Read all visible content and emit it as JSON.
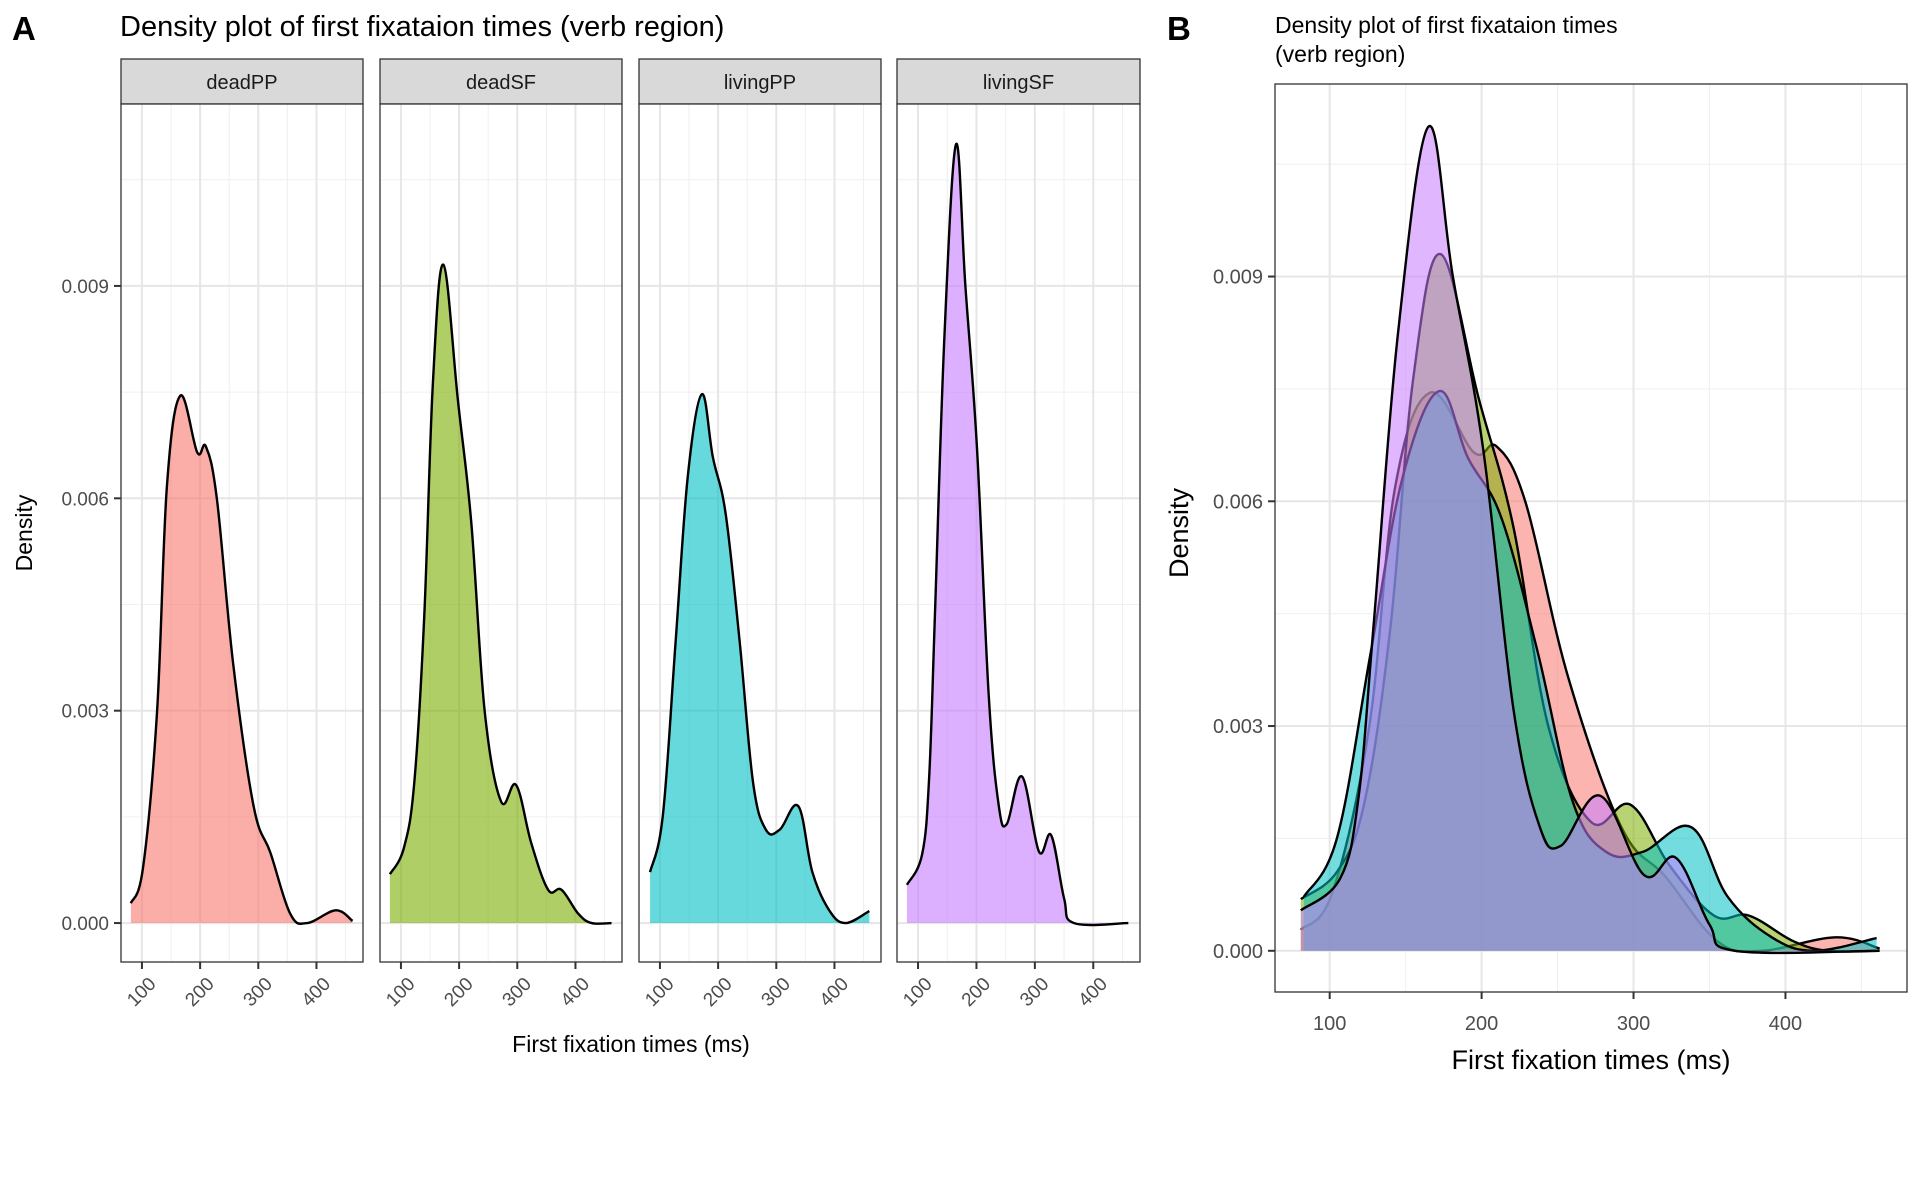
{
  "chart_data": [
    {
      "type": "area",
      "subtype": "faceted density",
      "tag": "A",
      "title": "Density plot of first fixataion times (verb region)",
      "xlabel": "First fixation times (ms)",
      "ylabel": "Density",
      "xlim": [
        64,
        480
      ],
      "ylim": [
        -0.00055,
        0.01157
      ],
      "x_ticks": [
        100,
        200,
        300,
        400
      ],
      "x_tick_labels": [
        "100",
        "200",
        "300",
        "400"
      ],
      "x_minor_ticks": [
        150,
        250,
        350,
        450
      ],
      "y_ticks": [
        0.0,
        0.003,
        0.006,
        0.009
      ],
      "y_tick_labels": [
        "0.000",
        "0.003",
        "0.006",
        "0.009"
      ],
      "y_minor_ticks": [
        0.0015,
        0.0045,
        0.0075,
        0.0105
      ],
      "x_tick_rotation_deg": 45,
      "grid": true,
      "fill_opacity": 0.6,
      "facets": [
        "deadPP",
        "deadSF",
        "livingPP",
        "livingSF"
      ]
    },
    {
      "type": "area",
      "subtype": "overlaid density",
      "tag": "B",
      "title": "Density plot of first fixataion times\n(verb region)",
      "title_lines": [
        "Density plot of first fixataion times",
        "(verb region)"
      ],
      "xlabel": "First fixation times (ms)",
      "ylabel": "Density",
      "xlim": [
        64,
        480
      ],
      "ylim": [
        -0.00055,
        0.01157
      ],
      "x_ticks": [
        100,
        200,
        300,
        400
      ],
      "x_tick_labels": [
        "100",
        "200",
        "300",
        "400"
      ],
      "x_minor_ticks": [
        150,
        250,
        350,
        450
      ],
      "y_ticks": [
        0.0,
        0.003,
        0.006,
        0.009
      ],
      "y_tick_labels": [
        "0.000",
        "0.003",
        "0.006",
        "0.009"
      ],
      "y_minor_ticks": [
        0.0015,
        0.0045,
        0.0075,
        0.0105
      ],
      "grid": true,
      "fill_opacity": 0.55,
      "legend": "none"
    }
  ],
  "series": [
    {
      "name": "deadPP",
      "color": "#F8766D",
      "x": [
        81,
        102,
        126,
        143,
        166,
        195,
        210,
        229,
        257,
        292,
        321,
        355,
        384,
        433,
        462
      ],
      "y": [
        0.00028,
        0.00079,
        0.00299,
        0.00618,
        0.00745,
        0.00665,
        0.00673,
        0.00598,
        0.00365,
        0.00165,
        0.00099,
        0.00013,
        0.0,
        0.00018,
        3e-05
      ]
    },
    {
      "name": "deadSF",
      "color": "#7CAE00",
      "x": [
        81,
        105,
        123,
        140,
        155,
        173,
        198,
        221,
        244,
        272,
        298,
        324,
        353,
        376,
        405,
        428,
        462
      ],
      "y": [
        0.00069,
        0.00106,
        0.00199,
        0.00432,
        0.00764,
        0.0093,
        0.00738,
        0.00565,
        0.00299,
        0.00172,
        0.00195,
        0.00113,
        0.00047,
        0.00047,
        0.00013,
        0.0,
        0.0
      ]
    },
    {
      "name": "livingPP",
      "color": "#00BFC4",
      "x": [
        83,
        105,
        127,
        148,
        172,
        191,
        213,
        237,
        260,
        282,
        306,
        338,
        362,
        391,
        419,
        460
      ],
      "y": [
        0.00072,
        0.00152,
        0.00398,
        0.00632,
        0.00747,
        0.00658,
        0.00578,
        0.00398,
        0.00199,
        0.00132,
        0.00132,
        0.00165,
        0.00072,
        0.00018,
        0.0,
        0.00017
      ]
    },
    {
      "name": "livingSF",
      "color": "#C77CFF",
      "x": [
        81,
        107,
        119,
        129,
        145,
        165,
        181,
        201,
        221,
        238,
        252,
        278,
        307,
        328,
        350,
        367,
        460
      ],
      "y": [
        0.00054,
        0.00097,
        0.00205,
        0.00437,
        0.00825,
        0.011,
        0.00901,
        0.0067,
        0.00322,
        0.00167,
        0.0014,
        0.00207,
        0.00101,
        0.00124,
        0.00035,
        0.0,
        0.0
      ]
    }
  ]
}
